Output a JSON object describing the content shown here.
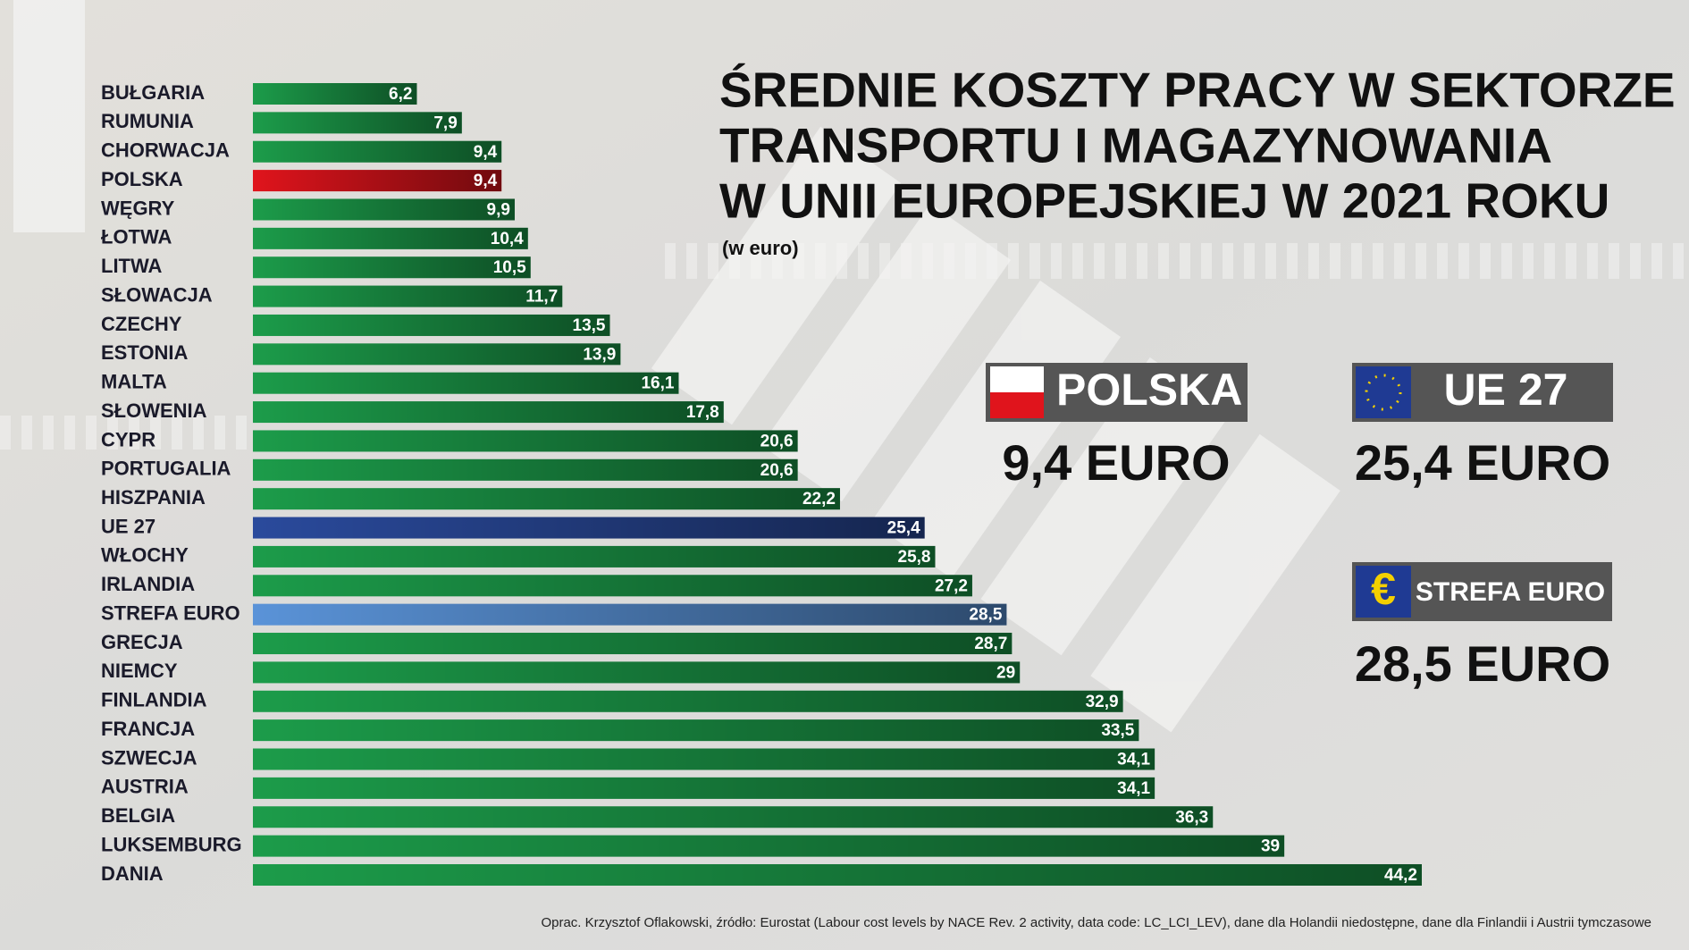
{
  "chart_data": {
    "type": "bar",
    "title": [
      "ŚREDNIE KOSZTY PRACY W SEKTORZE",
      "TRANSPORTU I MAGAZYNOWANIA",
      "W UNII EUROPEJSKIEJ W 2021 ROKU"
    ],
    "subtitle": "(w euro)",
    "categories": [
      "BUŁGARIA",
      "RUMUNIA",
      "CHORWACJA",
      "POLSKA",
      "WĘGRY",
      "ŁOTWA",
      "LITWA",
      "SŁOWACJA",
      "CZECHY",
      "ESTONIA",
      "MALTA",
      "SŁOWENIA",
      "CYPR",
      "PORTUGALIA",
      "HISZPANIA",
      "UE 27",
      "WŁOCHY",
      "IRLANDIA",
      "STREFA EURO",
      "GRECJA",
      "NIEMCY",
      "FINLANDIA",
      "FRANCJA",
      "SZWECJA",
      "AUSTRIA",
      "BELGIA",
      "LUKSEMBURG",
      "DANIA"
    ],
    "values": [
      6.2,
      7.9,
      9.4,
      9.4,
      9.9,
      10.4,
      10.5,
      11.7,
      13.5,
      13.9,
      16.1,
      17.8,
      20.6,
      20.6,
      22.2,
      25.4,
      25.8,
      27.2,
      28.5,
      28.7,
      29,
      32.9,
      33.5,
      34.1,
      34.1,
      36.3,
      39,
      44.2
    ],
    "value_labels": [
      "6,2",
      "7,9",
      "9,4",
      "9,4",
      "9,9",
      "10,4",
      "10,5",
      "11,7",
      "13,5",
      "13,9",
      "16,1",
      "17,8",
      "20,6",
      "20,6",
      "22,2",
      "25,4",
      "25,8",
      "27,2",
      "28,5",
      "28,7",
      "29",
      "32,9",
      "33,5",
      "34,1",
      "34,1",
      "36,3",
      "39",
      "44,2"
    ],
    "colors": [
      "#1c9c4a",
      "#1c9c4a",
      "#1c9c4a",
      "#e0141c",
      "#1c9c4a",
      "#1c9c4a",
      "#1c9c4a",
      "#1c9c4a",
      "#1c9c4a",
      "#1c9c4a",
      "#1c9c4a",
      "#1c9c4a",
      "#1c9c4a",
      "#1c9c4a",
      "#1c9c4a",
      "#2a4a9c",
      "#1c9c4a",
      "#1c9c4a",
      "#5a93d8",
      "#1c9c4a",
      "#1c9c4a",
      "#1c9c4a",
      "#1c9c4a",
      "#1c9c4a",
      "#1c9c4a",
      "#1c9c4a",
      "#1c9c4a",
      "#1c9c4a"
    ],
    "highlights": [
      {
        "label": "POLSKA",
        "value": "9,4 EURO"
      },
      {
        "label": "UE 27",
        "value": "25,4 EURO"
      },
      {
        "label": "STREFA EURO",
        "value": "28,5 EURO"
      }
    ],
    "source": "Oprac. Krzysztof Oflakowski, źródło: Eurostat (Labour cost levels by NACE Rev. 2 activity, data code: LC_LCI_LEV), dane dla Holandii niedostępne, dane dla Finlandii i Austrii tymczasowe"
  }
}
